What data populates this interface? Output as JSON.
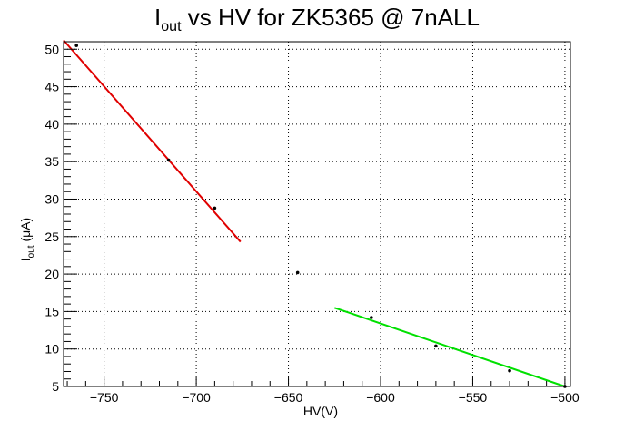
{
  "chart_data": {
    "type": "scatter",
    "title": {
      "prefix": "I",
      "sub": "out",
      "suffix": " vs HV for ZK5365 @ 7nALL"
    },
    "xlabel": "HV(V)",
    "ylabel": {
      "prefix": "I",
      "sub": "out",
      "suffix": " (μA)"
    },
    "xlim": [
      -772,
      -497
    ],
    "ylim": [
      5,
      51
    ],
    "x_ticks": [
      -750,
      -700,
      -650,
      -600,
      -550,
      -500
    ],
    "y_ticks": [
      5,
      10,
      15,
      20,
      25,
      30,
      35,
      40,
      45,
      50
    ],
    "grid": true,
    "points": [
      {
        "x": -765,
        "y": 50.5
      },
      {
        "x": -715,
        "y": 35.2
      },
      {
        "x": -690,
        "y": 28.8
      },
      {
        "x": -645,
        "y": 20.2
      },
      {
        "x": -605,
        "y": 14.2
      },
      {
        "x": -570,
        "y": 10.4
      },
      {
        "x": -530,
        "y": 7.1
      },
      {
        "x": -500,
        "y": 5.0
      }
    ],
    "fits": [
      {
        "color": "#e00000",
        "x": [
          -772,
          -676
        ],
        "y": [
          51.2,
          24.3
        ]
      },
      {
        "color": "#00e000",
        "x": [
          -625,
          -500
        ],
        "y": [
          15.5,
          5.0
        ]
      }
    ],
    "colors": {
      "points": "#000000",
      "grid": "#000000"
    }
  }
}
